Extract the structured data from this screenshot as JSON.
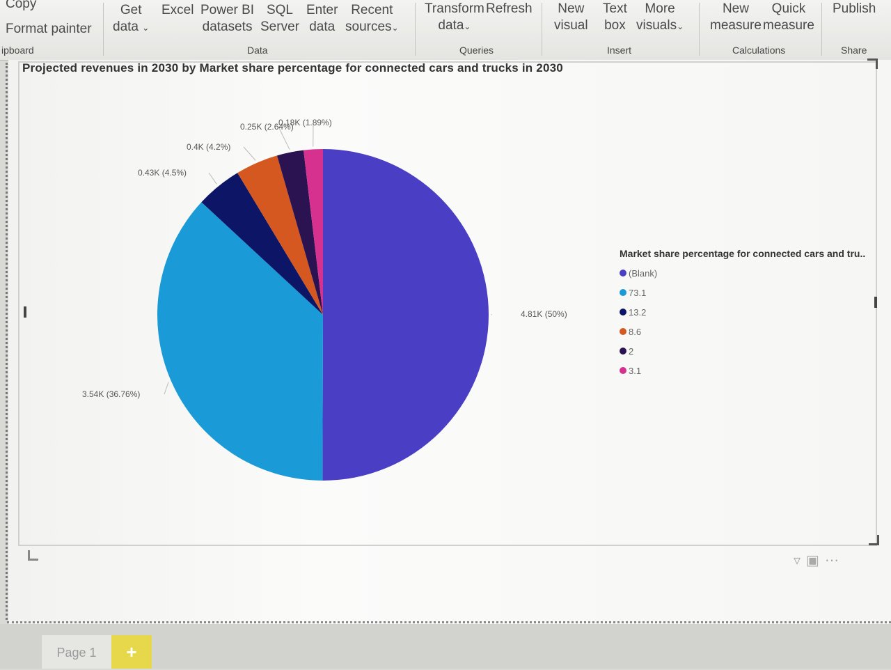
{
  "ribbon": {
    "clipboard": {
      "copy": "Copy",
      "format_painter": "Format painter",
      "group": "ipboard"
    },
    "data": {
      "get_data": [
        "Get",
        "data"
      ],
      "excel": "Excel",
      "power_bi": [
        "Power BI",
        "datasets"
      ],
      "sql": [
        "SQL",
        "Server"
      ],
      "enter": [
        "Enter",
        "data"
      ],
      "recent": [
        "Recent",
        "sources"
      ],
      "group": "Data"
    },
    "queries": {
      "transform": [
        "Transform",
        "data"
      ],
      "refresh": "Refresh",
      "group": "Queries"
    },
    "insert": {
      "new_visual": [
        "New",
        "visual"
      ],
      "text_box": [
        "Text",
        "box"
      ],
      "more_visuals": [
        "More",
        "visuals"
      ],
      "group": "Insert"
    },
    "calculations": {
      "new_measure": [
        "New",
        "measure"
      ],
      "quick_measure": [
        "Quick",
        "measure"
      ],
      "group": "Calculations"
    },
    "share": {
      "publish": "Publish",
      "group": "Share"
    }
  },
  "colors": {
    "blank": "#4a3fc4",
    "v73_1": "#1a9ad6",
    "v13_2": "#0d1566",
    "v8_6": "#d4581f",
    "v2": "#2b1352",
    "v3_1": "#d6318f"
  },
  "chart_data": {
    "type": "pie",
    "title": "Projected revenues in 2030 by Market share percentage for connected cars and trucks in 2030",
    "legend_title": "Market share percentage for connected cars and tru..",
    "legend_position": "right",
    "slices": [
      {
        "label": "(Blank)",
        "value": 4810,
        "percent": 50,
        "data_label": "4.81K (50%)",
        "color": "#4a3fc4"
      },
      {
        "label": "73.1",
        "value": 3540,
        "percent": 36.76,
        "data_label": "3.54K (36.76%)",
        "color": "#1a9ad6"
      },
      {
        "label": "13.2",
        "value": 430,
        "percent": 4.5,
        "data_label": "0.43K (4.5%)",
        "color": "#0d1566"
      },
      {
        "label": "8.6",
        "value": 400,
        "percent": 4.2,
        "data_label": "0.4K (4.2%)",
        "color": "#d4581f"
      },
      {
        "label": "2",
        "value": 250,
        "percent": 2.64,
        "data_label": "0.25K (2.64%)",
        "color": "#2b1352"
      },
      {
        "label": "3.1",
        "value": 180,
        "percent": 1.89,
        "data_label": "0.18K (1.89%)",
        "color": "#d6318f"
      }
    ]
  },
  "footer": {
    "page_tab": "Page 1",
    "add_page": "+"
  }
}
